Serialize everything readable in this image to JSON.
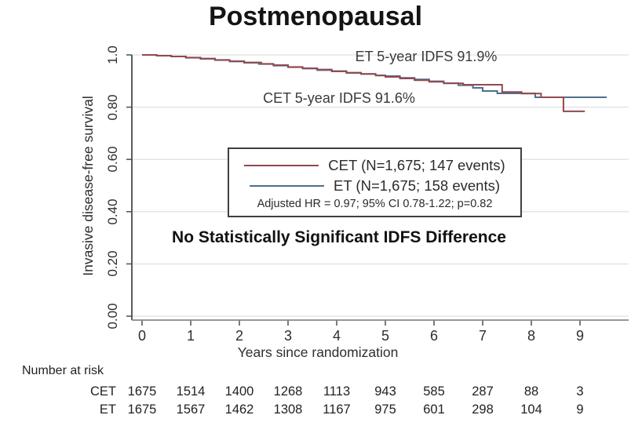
{
  "title": "Postmenopausal",
  "chart_data": {
    "type": "line",
    "subtype": "kaplan-meier-step",
    "title": "Postmenopausal",
    "xlabel": "Years since randomization",
    "ylabel": "Invasive disease-free survival",
    "xlim": [
      0,
      9.7
    ],
    "ylim": [
      0,
      1.0
    ],
    "xticks": [
      0,
      1,
      2,
      3,
      4,
      5,
      6,
      7,
      8,
      9
    ],
    "yticks": [
      0.0,
      0.2,
      0.4,
      0.6,
      0.8,
      1.0
    ],
    "ytick_labels": [
      "0.00",
      "0.20",
      "0.40",
      "0.60",
      "0.80",
      "1.0"
    ],
    "grid": "horizontal",
    "legend_position": "center-inside-box",
    "series": [
      {
        "name": "ET",
        "color": "#4f6f8d",
        "points": [
          [
            0,
            1.0
          ],
          [
            0.3,
            0.997
          ],
          [
            0.6,
            0.994
          ],
          [
            0.9,
            0.989
          ],
          [
            1.2,
            0.985
          ],
          [
            1.5,
            0.98
          ],
          [
            1.8,
            0.975
          ],
          [
            2.1,
            0.97
          ],
          [
            2.4,
            0.965
          ],
          [
            2.7,
            0.959
          ],
          [
            3.0,
            0.953
          ],
          [
            3.3,
            0.948
          ],
          [
            3.6,
            0.942
          ],
          [
            3.9,
            0.937
          ],
          [
            4.2,
            0.931
          ],
          [
            4.5,
            0.927
          ],
          [
            4.8,
            0.922
          ],
          [
            5.0,
            0.919
          ],
          [
            5.3,
            0.912
          ],
          [
            5.6,
            0.906
          ],
          [
            5.9,
            0.899
          ],
          [
            6.2,
            0.892
          ],
          [
            6.5,
            0.884
          ],
          [
            6.8,
            0.874
          ],
          [
            7.0,
            0.862
          ],
          [
            7.3,
            0.853
          ],
          [
            8.08,
            0.838
          ],
          [
            9.55,
            0.838
          ]
        ]
      },
      {
        "name": "CET",
        "color": "#93484f",
        "points": [
          [
            0,
            1.0
          ],
          [
            0.3,
            0.997
          ],
          [
            0.6,
            0.994
          ],
          [
            0.9,
            0.99
          ],
          [
            1.2,
            0.986
          ],
          [
            1.5,
            0.981
          ],
          [
            1.8,
            0.976
          ],
          [
            2.1,
            0.971
          ],
          [
            2.45,
            0.966
          ],
          [
            2.7,
            0.961
          ],
          [
            3.0,
            0.954
          ],
          [
            3.3,
            0.949
          ],
          [
            3.6,
            0.944
          ],
          [
            3.9,
            0.938
          ],
          [
            4.2,
            0.932
          ],
          [
            4.5,
            0.927
          ],
          [
            4.8,
            0.921
          ],
          [
            5.0,
            0.916
          ],
          [
            5.3,
            0.91
          ],
          [
            5.6,
            0.903
          ],
          [
            5.9,
            0.897
          ],
          [
            6.2,
            0.891
          ],
          [
            6.6,
            0.886
          ],
          [
            7.4,
            0.858
          ],
          [
            7.8,
            0.852
          ],
          [
            8.2,
            0.838
          ],
          [
            8.66,
            0.784
          ],
          [
            9.1,
            0.784
          ]
        ]
      }
    ],
    "annotations": [
      {
        "text": "ET 5-year IDFS 91.9%"
      },
      {
        "text": "CET 5-year IDFS 91.6%"
      }
    ]
  },
  "legend": {
    "entries": [
      {
        "label": "CET (N=1,675; 147 events)",
        "color": "#93484f"
      },
      {
        "label": "ET (N=1,675; 158 events)",
        "color": "#4f6f8d"
      }
    ],
    "stats_line": "Adjusted HR = 0.97; 95% CI 0.78-1.22; p=0.82"
  },
  "headline": "No Statistically Significant IDFS Difference",
  "risk_table": {
    "heading": "Number at risk",
    "rows": [
      {
        "label": "CET",
        "values": [
          "1675",
          "1514",
          "1400",
          "1268",
          "1113",
          "943",
          "585",
          "287",
          "88",
          "3"
        ]
      },
      {
        "label": "ET",
        "values": [
          "1675",
          "1567",
          "1462",
          "1308",
          "1167",
          "975",
          "601",
          "298",
          "104",
          "9"
        ]
      }
    ]
  },
  "colors": {
    "cet_line": "#93484f",
    "et_line": "#4f6f8d",
    "gridline": "#e6e6e6",
    "axis": "#5a5a5a"
  }
}
